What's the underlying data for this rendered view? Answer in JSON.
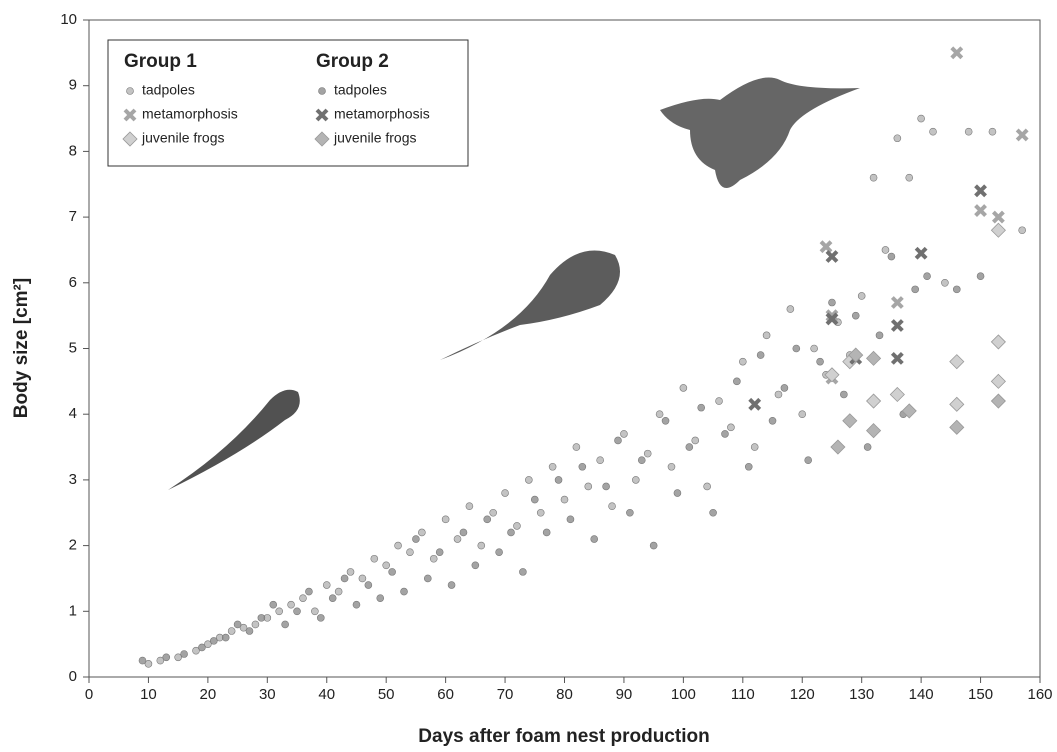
{
  "chart_data": {
    "type": "scatter",
    "x_label": "Days after foam nest production",
    "y_label": "Body size [cm²]",
    "xlim": [
      0,
      160
    ],
    "xticks": [
      0,
      10,
      20,
      30,
      40,
      50,
      60,
      70,
      80,
      90,
      100,
      110,
      120,
      130,
      140,
      150,
      160
    ],
    "ylim": [
      0,
      10
    ],
    "yticks": [
      0,
      1,
      2,
      3,
      4,
      5,
      6,
      7,
      8,
      9,
      10
    ],
    "groups": [
      {
        "name": "Group 1",
        "series": [
          {
            "name": "tadpoles",
            "marker": "circle",
            "color": "#b4b4b4",
            "x": [
              10,
              12,
              15,
              18,
              20,
              22,
              24,
              26,
              28,
              30,
              32,
              34,
              36,
              38,
              40,
              42,
              44,
              46,
              48,
              50,
              52,
              54,
              56,
              58,
              60,
              62,
              64,
              66,
              68,
              70,
              72,
              74,
              76,
              78,
              80,
              82,
              84,
              86,
              88,
              90,
              92,
              94,
              96,
              98,
              100,
              102,
              104,
              106,
              108,
              110,
              112,
              114,
              116,
              118,
              120,
              122,
              124,
              126,
              128,
              130,
              132,
              134,
              136,
              138,
              140,
              142,
              144,
              148,
              152,
              157
            ],
            "values": [
              0.2,
              0.25,
              0.3,
              0.4,
              0.5,
              0.6,
              0.7,
              0.75,
              0.8,
              0.9,
              1.0,
              1.1,
              1.2,
              1.0,
              1.4,
              1.3,
              1.6,
              1.5,
              1.8,
              1.7,
              2.0,
              1.9,
              2.2,
              1.8,
              2.4,
              2.1,
              2.6,
              2.0,
              2.5,
              2.8,
              2.3,
              3.0,
              2.5,
              3.2,
              2.7,
              3.5,
              2.9,
              3.3,
              2.6,
              3.7,
              3.0,
              3.4,
              4.0,
              3.2,
              4.4,
              3.6,
              2.9,
              4.2,
              3.8,
              4.8,
              3.5,
              5.2,
              4.3,
              5.6,
              4.0,
              5.0,
              4.6,
              5.4,
              4.9,
              5.8,
              7.6,
              6.5,
              8.2,
              7.6,
              8.5,
              8.3,
              6.0,
              8.3,
              8.3,
              6.8
            ]
          },
          {
            "name": "metamorphosis",
            "marker": "cross",
            "color": "#a6a6a6",
            "x": [
              124,
              125,
              125,
              136,
              146,
              150,
              153,
              157
            ],
            "values": [
              6.55,
              5.5,
              4.55,
              5.7,
              9.5,
              7.1,
              7.0,
              8.25
            ]
          },
          {
            "name": "juvenile frogs",
            "marker": "diamond",
            "color": "#d0d0d0",
            "x": [
              125,
              128,
              132,
              136,
              146,
              146,
              153,
              153,
              153
            ],
            "values": [
              4.6,
              4.8,
              4.2,
              4.3,
              4.8,
              4.15,
              5.1,
              4.5,
              6.8
            ]
          }
        ]
      },
      {
        "name": "Group 2",
        "series": [
          {
            "name": "tadpoles",
            "marker": "circle",
            "color": "#8c8c8c",
            "x": [
              9,
              13,
              16,
              19,
              21,
              23,
              25,
              27,
              29,
              31,
              33,
              35,
              37,
              39,
              41,
              43,
              45,
              47,
              49,
              51,
              53,
              55,
              57,
              59,
              61,
              63,
              65,
              67,
              69,
              71,
              73,
              75,
              77,
              79,
              81,
              83,
              85,
              87,
              89,
              91,
              93,
              95,
              97,
              99,
              101,
              103,
              105,
              107,
              109,
              111,
              113,
              115,
              117,
              119,
              121,
              123,
              125,
              127,
              129,
              131,
              133,
              135,
              137,
              139,
              141,
              146,
              150
            ],
            "values": [
              0.25,
              0.3,
              0.35,
              0.45,
              0.55,
              0.6,
              0.8,
              0.7,
              0.9,
              1.1,
              0.8,
              1.0,
              1.3,
              0.9,
              1.2,
              1.5,
              1.1,
              1.4,
              1.2,
              1.6,
              1.3,
              2.1,
              1.5,
              1.9,
              1.4,
              2.2,
              1.7,
              2.4,
              1.9,
              2.2,
              1.6,
              2.7,
              2.2,
              3.0,
              2.4,
              3.2,
              2.1,
              2.9,
              3.6,
              2.5,
              3.3,
              2.0,
              3.9,
              2.8,
              3.5,
              4.1,
              2.5,
              3.7,
              4.5,
              3.2,
              4.9,
              3.9,
              4.4,
              5.0,
              3.3,
              4.8,
              5.7,
              4.3,
              5.5,
              3.5,
              5.2,
              6.4,
              4.0,
              5.9,
              6.1,
              5.9,
              6.1
            ]
          },
          {
            "name": "metamorphosis",
            "marker": "cross",
            "color": "#707070",
            "x": [
              112,
              125,
              125,
              129,
              136,
              136,
              140,
              150
            ],
            "values": [
              4.15,
              6.4,
              5.45,
              4.85,
              4.85,
              5.35,
              6.45,
              7.4
            ]
          },
          {
            "name": "juvenile frogs",
            "marker": "diamond",
            "color": "#b4b4b4",
            "x": [
              126,
              128,
              129,
              132,
              132,
              138,
              146,
              153
            ],
            "values": [
              3.5,
              3.9,
              4.9,
              3.75,
              4.85,
              4.05,
              3.8,
              4.2
            ]
          }
        ]
      }
    ]
  }
}
